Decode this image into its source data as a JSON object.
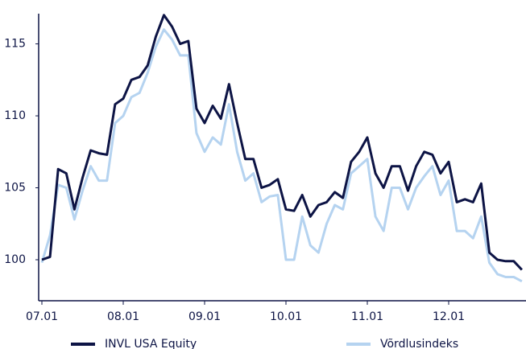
{
  "chart_data": {
    "type": "line",
    "categories": [
      "07.01",
      null,
      null,
      null,
      null,
      null,
      null,
      null,
      null,
      null,
      "08.01",
      null,
      null,
      null,
      null,
      null,
      null,
      null,
      null,
      null,
      "09.01",
      null,
      null,
      null,
      null,
      null,
      null,
      null,
      null,
      null,
      "10.01",
      null,
      null,
      null,
      null,
      null,
      null,
      null,
      null,
      null,
      "11.01",
      null,
      null,
      null,
      null,
      null,
      null,
      null,
      null,
      null,
      "12.01",
      null,
      null,
      null,
      null,
      null,
      null,
      null,
      null,
      null
    ],
    "series": [
      {
        "name": "INVL USA Equity",
        "color": "#0d1445",
        "values": [
          100,
          100.2,
          106.3,
          106.0,
          103.5,
          105.7,
          107.6,
          107.4,
          107.3,
          110.8,
          111.2,
          112.5,
          112.7,
          113.5,
          115.5,
          117,
          116.2,
          115.0,
          115.2,
          110.5,
          109.5,
          110.7,
          109.8,
          112.2,
          109.5,
          107.0,
          107.0,
          105.0,
          105.2,
          105.6,
          103.5,
          103.4,
          104.5,
          103.0,
          103.8,
          104.0,
          104.7,
          104.3,
          106.8,
          107.5,
          108.5,
          106.0,
          105.0,
          106.5,
          106.5,
          104.8,
          106.5,
          107.5,
          107.3,
          106.0,
          106.8,
          104.0,
          104.2,
          104.0,
          105.3,
          100.5,
          100.0,
          99.9,
          99.9,
          99.3
        ]
      },
      {
        "name": "Võrdlusindeks",
        "color": "#b5d3f0",
        "values": [
          99.8,
          101.7,
          105.2,
          105.0,
          102.8,
          104.8,
          106.5,
          105.5,
          105.5,
          109.5,
          110.0,
          111.3,
          111.6,
          113.0,
          114.8,
          116.0,
          115.3,
          114.2,
          114.2,
          108.8,
          107.5,
          108.5,
          108.0,
          110.8,
          107.5,
          105.5,
          106.0,
          104.0,
          104.4,
          104.5,
          100.0,
          100.0,
          103.0,
          101.0,
          100.5,
          102.5,
          103.8,
          103.5,
          106.0,
          106.5,
          107.0,
          103.0,
          102.0,
          105.0,
          105.0,
          103.5,
          105.0,
          105.8,
          106.5,
          104.5,
          105.5,
          102.0,
          102.0,
          101.5,
          103.0,
          99.8,
          99.0,
          98.8,
          98.8,
          98.5
        ]
      }
    ],
    "ylim": [
      97.15,
      117.1
    ],
    "yticks": [
      100,
      105,
      110,
      115
    ],
    "grid": false,
    "legend": "bottom"
  }
}
